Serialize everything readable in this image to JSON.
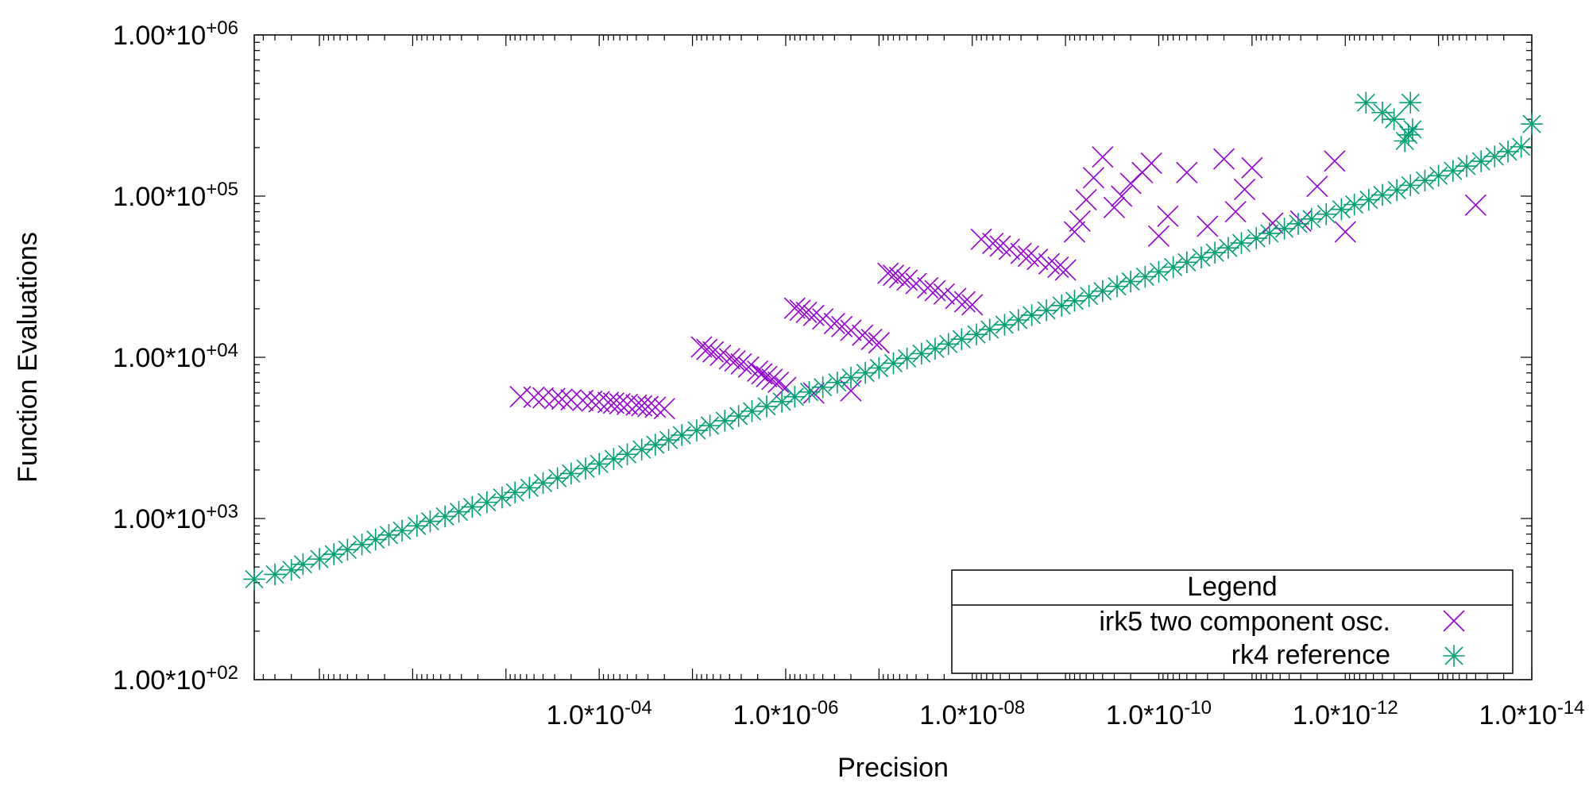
{
  "chart_data": {
    "type": "scatter",
    "xlabel": "Precision",
    "ylabel": "Function Evaluations",
    "x_scale": "log-reversed",
    "y_scale": "log",
    "xlim": [
      0.5,
      1e-14
    ],
    "ylim": [
      100,
      1000000
    ],
    "grid": false,
    "legend_position": "bottom-right",
    "x_ticks": [
      {
        "value": 0.0001,
        "label_base": "1.0*10",
        "label_exp": "-04"
      },
      {
        "value": 1e-06,
        "label_base": "1.0*10",
        "label_exp": "-06"
      },
      {
        "value": 1e-08,
        "label_base": "1.0*10",
        "label_exp": "-08"
      },
      {
        "value": 1e-10,
        "label_base": "1.0*10",
        "label_exp": "-10"
      },
      {
        "value": 1e-12,
        "label_base": "1.0*10",
        "label_exp": "-12"
      },
      {
        "value": 1e-14,
        "label_base": "1.0*10",
        "label_exp": "-14"
      }
    ],
    "y_ticks": [
      {
        "value": 100,
        "label_base": "1.00*10",
        "label_exp": "+02"
      },
      {
        "value": 1000,
        "label_base": "1.00*10",
        "label_exp": "+03"
      },
      {
        "value": 10000,
        "label_base": "1.00*10",
        "label_exp": "+04"
      },
      {
        "value": 100000,
        "label_base": "1.00*10",
        "label_exp": "+05"
      },
      {
        "value": 1000000,
        "label_base": "1.00*10",
        "label_exp": "+06"
      }
    ],
    "legend": {
      "title": "Legend"
    },
    "series": [
      {
        "name": "irk5 two component osc.",
        "marker": "x",
        "color": "#9400d3",
        "points": [
          [
            2e-05,
            4800
          ],
          [
            2.5e-05,
            4900
          ],
          [
            3e-05,
            4950
          ],
          [
            3.5e-05,
            5000
          ],
          [
            4e-05,
            5050
          ],
          [
            5e-05,
            5100
          ],
          [
            6e-05,
            5150
          ],
          [
            7e-05,
            5200
          ],
          [
            8e-05,
            5250
          ],
          [
            0.0001,
            5300
          ],
          [
            0.00012,
            5350
          ],
          [
            0.00015,
            5400
          ],
          [
            0.0002,
            5450
          ],
          [
            0.00025,
            5500
          ],
          [
            0.0003,
            5550
          ],
          [
            0.0004,
            5600
          ],
          [
            0.0005,
            5650
          ],
          [
            0.0007,
            5700
          ],
          [
            1e-06,
            6500
          ],
          [
            1.2e-06,
            7000
          ],
          [
            1.4e-06,
            7300
          ],
          [
            1.6e-06,
            7600
          ],
          [
            1.8e-06,
            7900
          ],
          [
            2e-06,
            8200
          ],
          [
            2.5e-06,
            8700
          ],
          [
            3e-06,
            9100
          ],
          [
            3.5e-06,
            9500
          ],
          [
            4e-06,
            9800
          ],
          [
            5e-06,
            10300
          ],
          [
            6e-06,
            10800
          ],
          [
            7e-06,
            11200
          ],
          [
            8e-06,
            11600
          ],
          [
            1e-07,
            12300
          ],
          [
            1.2e-07,
            12900
          ],
          [
            1.5e-07,
            13700
          ],
          [
            2e-07,
            14700
          ],
          [
            2.5e-07,
            15500
          ],
          [
            3e-07,
            16200
          ],
          [
            4e-07,
            17300
          ],
          [
            5e-07,
            18200
          ],
          [
            6e-07,
            19000
          ],
          [
            7e-07,
            19600
          ],
          [
            8e-07,
            20200
          ],
          [
            1e-08,
            21200
          ],
          [
            1.2e-08,
            22100
          ],
          [
            1.5e-08,
            23200
          ],
          [
            2e-08,
            24700
          ],
          [
            2.5e-08,
            25900
          ],
          [
            3e-08,
            27000
          ],
          [
            4e-08,
            28700
          ],
          [
            5e-08,
            30100
          ],
          [
            6e-08,
            31300
          ],
          [
            7e-08,
            32300
          ],
          [
            8e-08,
            33200
          ],
          [
            1e-09,
            34800
          ],
          [
            1.2e-09,
            36200
          ],
          [
            1.5e-09,
            38000
          ],
          [
            2e-09,
            40500
          ],
          [
            2.5e-09,
            42400
          ],
          [
            3e-09,
            44100
          ],
          [
            4e-09,
            46800
          ],
          [
            5e-09,
            49000
          ],
          [
            6e-09,
            50900
          ],
          [
            8e-09,
            54000
          ],
          [
            1e-10,
            56500
          ],
          [
            1.2e-10,
            160000
          ],
          [
            1.5e-10,
            140000
          ],
          [
            2e-10,
            120000
          ],
          [
            2.5e-10,
            100000
          ],
          [
            3e-10,
            85000
          ],
          [
            4e-10,
            175000
          ],
          [
            5e-10,
            130000
          ],
          [
            6e-10,
            95000
          ],
          [
            7e-10,
            70000
          ],
          [
            8e-10,
            60000
          ],
          [
            1e-11,
            150000
          ],
          [
            1.2e-11,
            110000
          ],
          [
            1.5e-11,
            80000
          ],
          [
            2e-11,
            170000
          ],
          [
            3e-11,
            65000
          ],
          [
            5e-11,
            140000
          ],
          [
            8e-11,
            75000
          ],
          [
            1e-12,
            60000
          ],
          [
            1.3e-12,
            165000
          ],
          [
            2e-12,
            115000
          ],
          [
            3e-12,
            70000
          ],
          [
            6e-12,
            68000
          ],
          [
            4e-14,
            88000
          ],
          [
            2e-07,
            6200
          ],
          [
            5e-07,
            6000
          ]
        ]
      },
      {
        "name": "rk4 reference",
        "marker": "asterisk",
        "color": "#009e73",
        "points": [
          [
            0.5,
            420
          ],
          [
            0.3,
            450
          ],
          [
            0.2,
            480
          ],
          [
            0.15,
            520
          ],
          [
            0.1,
            560
          ],
          [
            0.07,
            600
          ],
          [
            0.05,
            640
          ],
          [
            0.035,
            690
          ],
          [
            0.025,
            740
          ],
          [
            0.018,
            790
          ],
          [
            0.013,
            840
          ],
          [
            0.009,
            900
          ],
          [
            0.0065,
            960
          ],
          [
            0.0045,
            1030
          ],
          [
            0.0032,
            1100
          ],
          [
            0.0023,
            1180
          ],
          [
            0.0016,
            1260
          ],
          [
            0.0011,
            1350
          ],
          [
            0.0008,
            1450
          ],
          [
            0.00056,
            1550
          ],
          [
            0.0004,
            1660
          ],
          [
            0.00028,
            1780
          ],
          [
            0.0002,
            1900
          ],
          [
            0.00014,
            2040
          ],
          [
            0.0001,
            2180
          ],
          [
            7e-05,
            2340
          ],
          [
            5e-05,
            2500
          ],
          [
            3.5e-05,
            2680
          ],
          [
            2.5e-05,
            2870
          ],
          [
            1.8e-05,
            3070
          ],
          [
            1.3e-05,
            3290
          ],
          [
            9e-06,
            3520
          ],
          [
            6.5e-06,
            3770
          ],
          [
            4.5e-06,
            4040
          ],
          [
            3.2e-06,
            4320
          ],
          [
            2.3e-06,
            4630
          ],
          [
            1.6e-06,
            4960
          ],
          [
            1.1e-06,
            5310
          ],
          [
            8e-07,
            5690
          ],
          [
            5.6e-07,
            6090
          ],
          [
            4e-07,
            6520
          ],
          [
            2.8e-07,
            6980
          ],
          [
            2e-07,
            7480
          ],
          [
            1.4e-07,
            8010
          ],
          [
            1e-07,
            8580
          ],
          [
            7e-08,
            9190
          ],
          [
            5e-08,
            9840
          ],
          [
            3.5e-08,
            10540
          ],
          [
            2.5e-08,
            11290
          ],
          [
            1.8e-08,
            12090
          ],
          [
            1.3e-08,
            12950
          ],
          [
            9e-09,
            13870
          ],
          [
            6.5e-09,
            14860
          ],
          [
            4.5e-09,
            15910
          ],
          [
            3.2e-09,
            17040
          ],
          [
            2.3e-09,
            18250
          ],
          [
            1.6e-09,
            19550
          ],
          [
            1.1e-09,
            20940
          ],
          [
            8e-10,
            22430
          ],
          [
            5.6e-10,
            24020
          ],
          [
            4e-10,
            25730
          ],
          [
            2.8e-10,
            27560
          ],
          [
            2e-10,
            29520
          ],
          [
            1.4e-10,
            31620
          ],
          [
            1e-10,
            33870
          ],
          [
            7e-11,
            36280
          ],
          [
            5e-11,
            38860
          ],
          [
            3.5e-11,
            41620
          ],
          [
            2.5e-11,
            44580
          ],
          [
            1.8e-11,
            47750
          ],
          [
            1.3e-11,
            51150
          ],
          [
            9e-12,
            54790
          ],
          [
            6.5e-12,
            58690
          ],
          [
            4.5e-12,
            62870
          ],
          [
            3.2e-12,
            67340
          ],
          [
            2.3e-12,
            72130
          ],
          [
            1.6e-12,
            77260
          ],
          [
            1.1e-12,
            82760
          ],
          [
            8e-13,
            88650
          ],
          [
            5.6e-13,
            94960
          ],
          [
            4e-13,
            101700
          ],
          [
            2.8e-13,
            108900
          ],
          [
            2e-13,
            116700
          ],
          [
            1.4e-13,
            125000
          ],
          [
            1e-13,
            133900
          ],
          [
            7e-14,
            143400
          ],
          [
            5e-14,
            153600
          ],
          [
            3.5e-14,
            164600
          ],
          [
            2.5e-14,
            176300
          ],
          [
            1.8e-14,
            188800
          ],
          [
            1.3e-14,
            202300
          ],
          [
            2e-13,
            380000
          ],
          [
            2.1e-13,
            240000
          ],
          [
            2.3e-13,
            220000
          ],
          [
            3e-13,
            300000
          ],
          [
            4e-13,
            330000
          ],
          [
            6e-13,
            380000
          ],
          [
            1e-14,
            280000
          ],
          [
            1.9e-13,
            260000
          ]
        ]
      }
    ]
  }
}
